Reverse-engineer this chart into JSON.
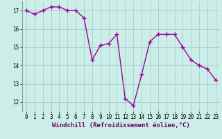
{
  "x": [
    0,
    1,
    2,
    3,
    4,
    5,
    6,
    7,
    8,
    9,
    10,
    11,
    12,
    13,
    14,
    15,
    16,
    17,
    18,
    19,
    20,
    21,
    22,
    23
  ],
  "y": [
    17.0,
    16.8,
    17.0,
    17.2,
    17.2,
    17.0,
    17.0,
    16.6,
    14.3,
    15.1,
    15.2,
    15.7,
    12.2,
    11.8,
    13.5,
    15.3,
    15.7,
    15.7,
    15.7,
    15.0,
    14.3,
    14.0,
    13.8,
    13.2
  ],
  "line_color": "#990099",
  "marker": "+",
  "markersize": 4,
  "linewidth": 1.0,
  "markeredgewidth": 1.0,
  "bg_color": "#cceee8",
  "grid_color": "#aacccc",
  "xlabel": "Windchill (Refroidissement éolien,°C)",
  "xlabel_fontsize": 6.5,
  "xlim": [
    -0.5,
    23.5
  ],
  "ylim": [
    11.5,
    17.5
  ],
  "yticks": [
    12,
    13,
    14,
    15,
    16,
    17
  ],
  "xticks": [
    0,
    1,
    2,
    3,
    4,
    5,
    6,
    7,
    8,
    9,
    10,
    11,
    12,
    13,
    14,
    15,
    16,
    17,
    18,
    19,
    20,
    21,
    22,
    23
  ],
  "tick_fontsize": 5.5,
  "spine_color": "#999999"
}
